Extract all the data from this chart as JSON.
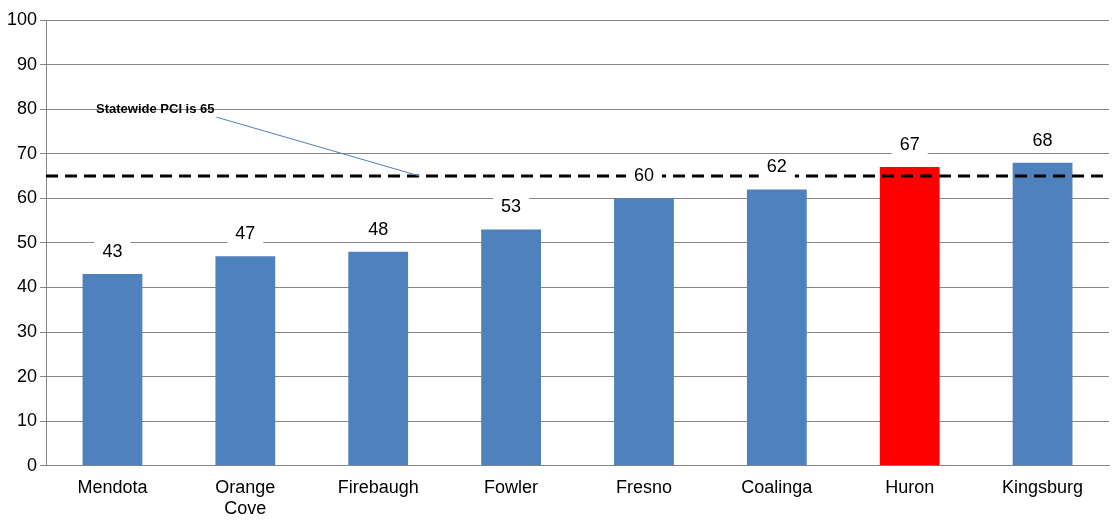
{
  "chart_data": {
    "type": "bar",
    "categories": [
      "Mendota",
      "Orange Cove",
      "Firebaugh",
      "Fowler",
      "Fresno",
      "Coalinga",
      "Huron",
      "Kingsburg"
    ],
    "values": [
      43,
      47,
      48,
      53,
      60,
      62,
      67,
      68
    ],
    "colors": [
      "#4f81bd",
      "#4f81bd",
      "#4f81bd",
      "#4f81bd",
      "#4f81bd",
      "#4f81bd",
      "#ff0000",
      "#4f81bd"
    ],
    "ylim": [
      0,
      100
    ],
    "yticks": [
      0,
      10,
      20,
      30,
      40,
      50,
      60,
      70,
      80,
      90,
      100
    ],
    "grid": "y",
    "data_labels": true,
    "ref_lines": [
      {
        "axis": "y",
        "value": 65,
        "label": "Statewide PCI is 65",
        "color": "#000000",
        "line_style": "dashed"
      }
    ]
  }
}
